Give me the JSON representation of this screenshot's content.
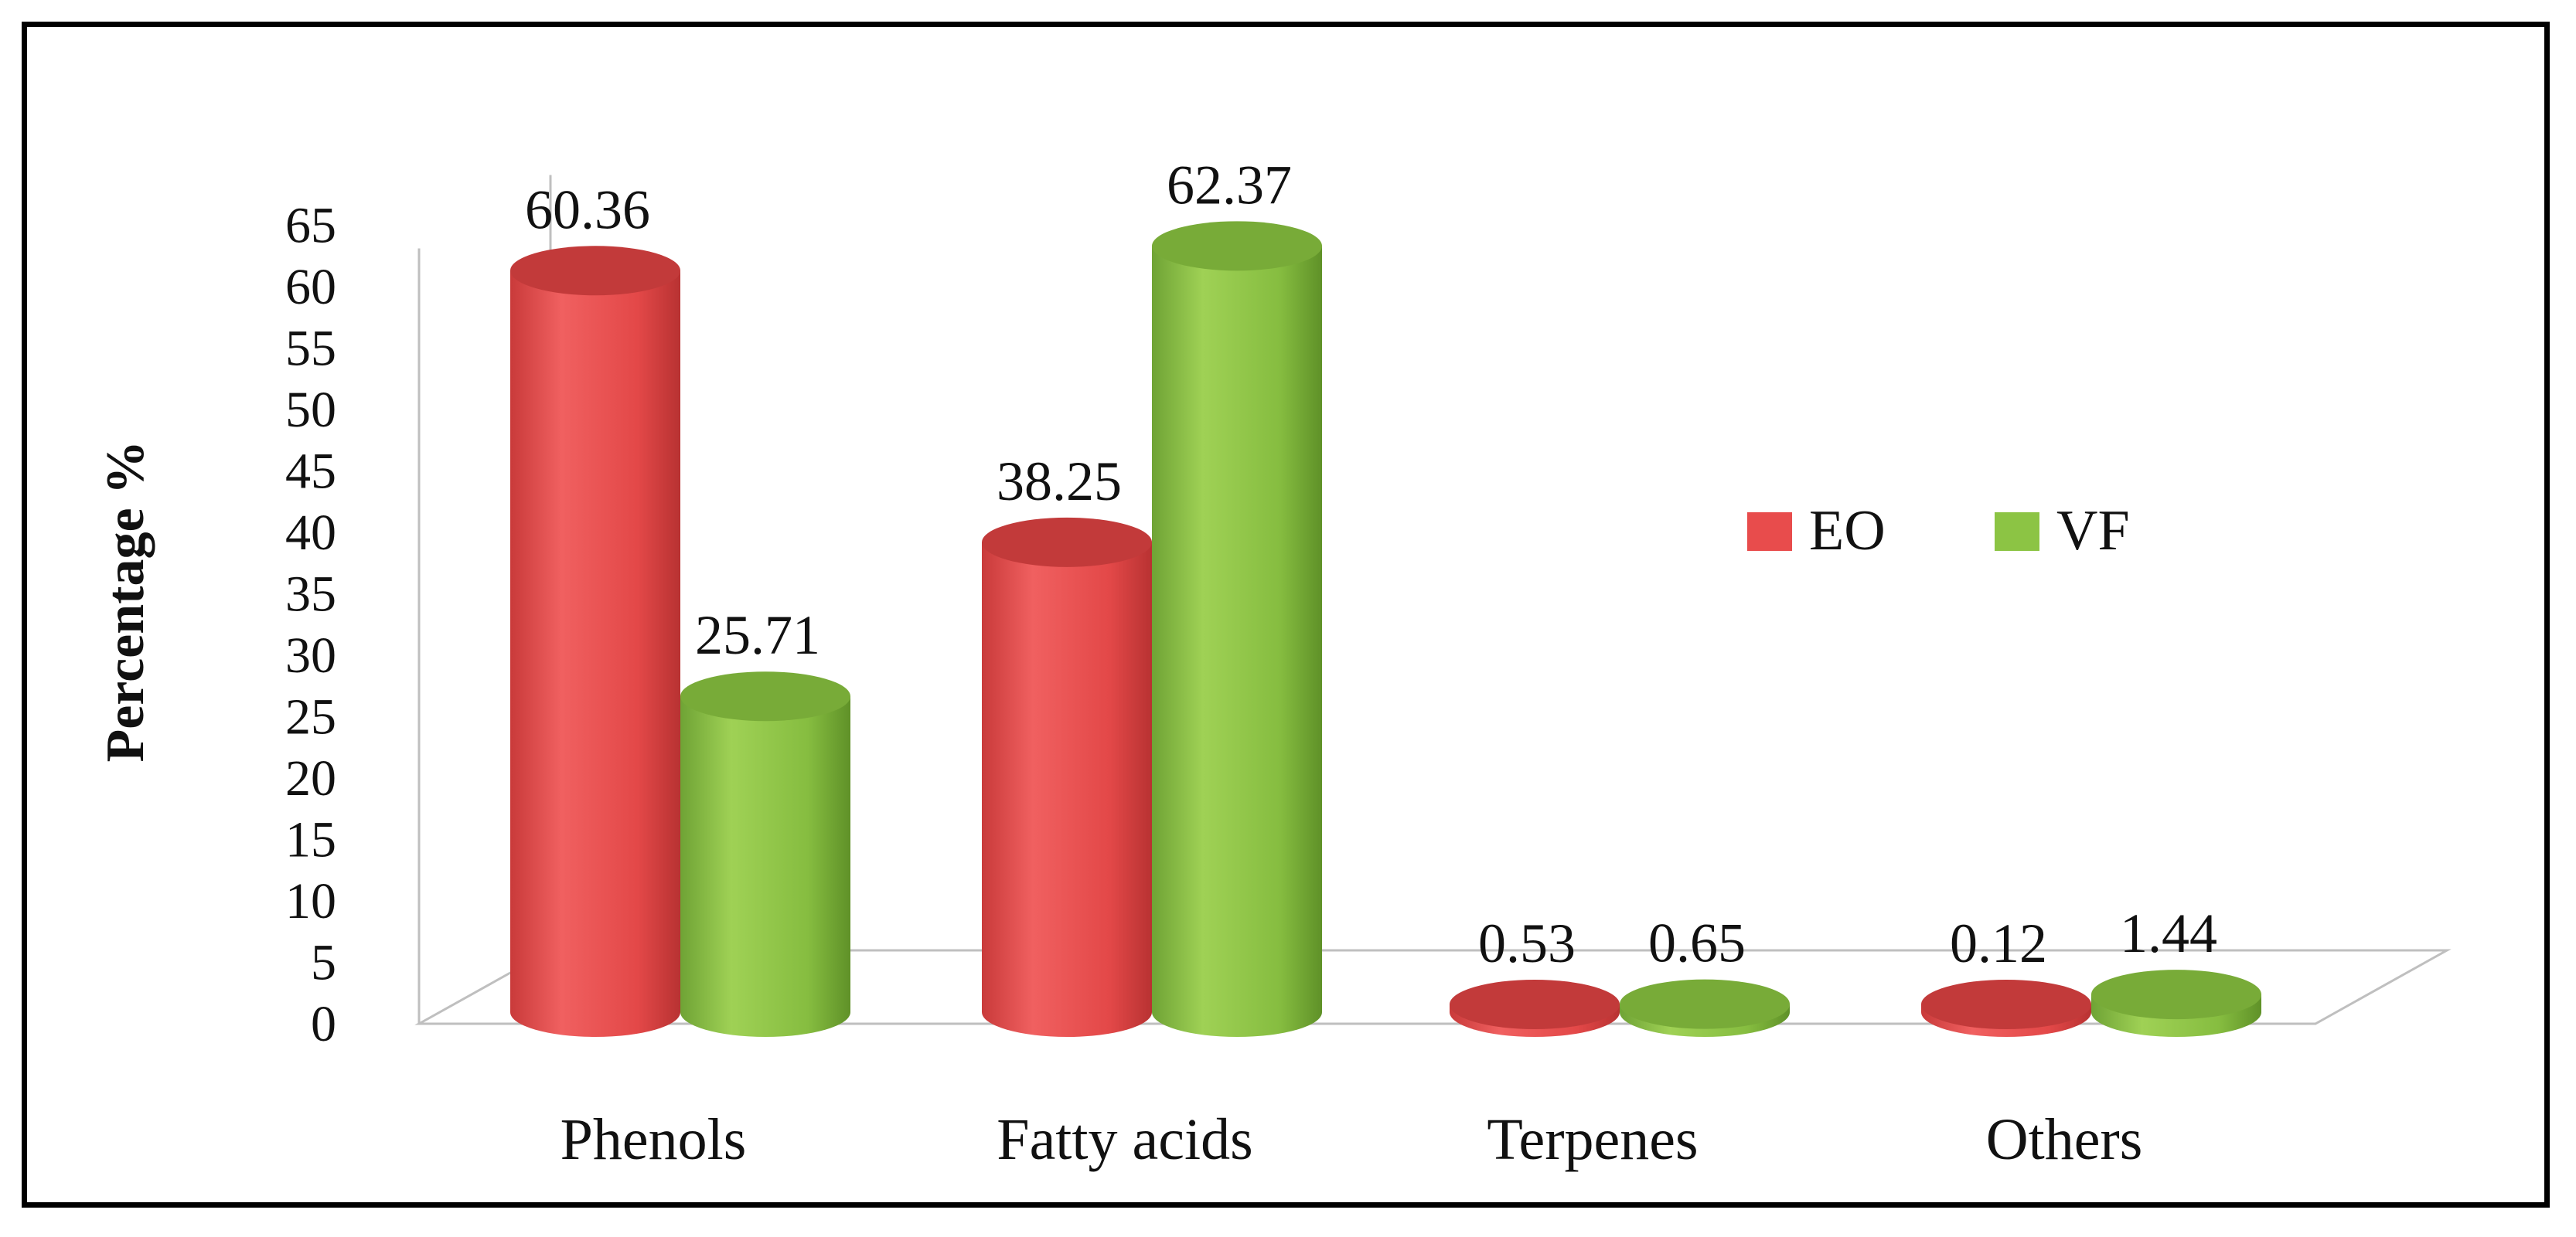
{
  "chart_data": {
    "type": "bar",
    "style": "3d-cylinder",
    "categories": [
      "Phenols",
      "Fatty acids",
      "Terpenes",
      "Others"
    ],
    "series": [
      {
        "name": "EO",
        "color": "#e84c4c",
        "values": [
          60.36,
          38.25,
          0.53,
          0.12
        ],
        "labels": [
          "60.36",
          "38.25",
          "0.53",
          "0.12"
        ]
      },
      {
        "name": "VF",
        "color": "#8cc444",
        "values": [
          25.71,
          62.37,
          0.65,
          1.44
        ],
        "labels": [
          "25.71",
          "62.37",
          "0.65",
          "1.44"
        ]
      }
    ],
    "title": "",
    "xlabel": "",
    "ylabel": "Percentage %",
    "ylim": [
      0,
      65
    ],
    "yticks": [
      "0",
      "5",
      "10",
      "15",
      "20",
      "25",
      "30",
      "35",
      "40",
      "45",
      "50",
      "55",
      "60",
      "65"
    ],
    "legend": {
      "position": "right",
      "entries": [
        "EO",
        "VF"
      ]
    },
    "grid": false
  }
}
